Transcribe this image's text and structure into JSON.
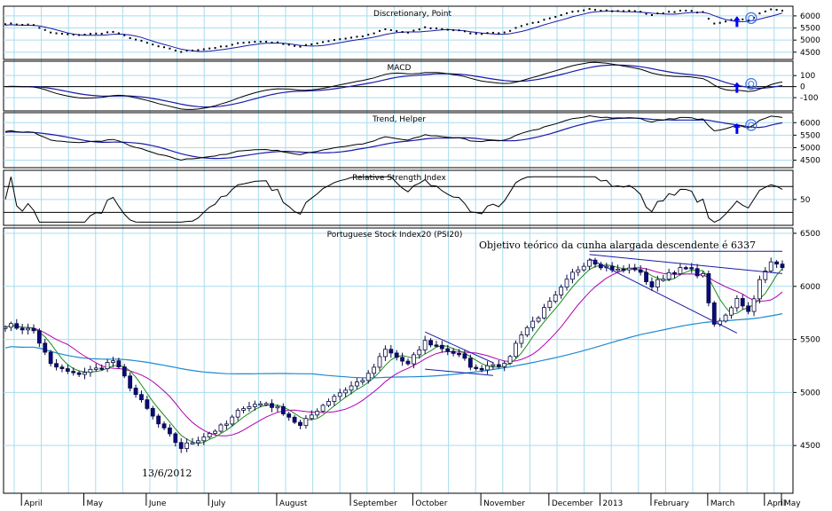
{
  "chart_data": [
    {
      "type": "line",
      "title": "Discretionary, Point",
      "yticks": [
        6000,
        5500,
        5000,
        4500
      ],
      "ylim": [
        4200,
        6400
      ],
      "colors": {
        "main": "#000000",
        "overlay": "#1a1aa8",
        "signal": "#0000ff"
      }
    },
    {
      "type": "line",
      "title": "MACD",
      "yticks": [
        100,
        0,
        -100
      ],
      "ylim": [
        -220,
        230
      ],
      "zero_line": 0,
      "colors": {
        "macd": "#000000",
        "signal": "#1a1aa8"
      }
    },
    {
      "type": "line",
      "title": "Trend, Helper",
      "yticks": [
        6000,
        5500,
        5000,
        4500
      ],
      "ylim": [
        4200,
        6400
      ],
      "colors": {
        "main": "#000000",
        "overlay": "#1a1aa8"
      }
    },
    {
      "type": "line",
      "title": "Relative Strength Index",
      "yticks": [
        50
      ],
      "ylim": [
        10,
        95
      ],
      "levels": [
        70,
        30
      ],
      "colors": {
        "rsi": "#000000"
      }
    },
    {
      "type": "candlestick",
      "title": "Portuguese Stock Index20 (PSI20)",
      "yticks": [
        6500,
        6000,
        5500,
        5000,
        4500
      ],
      "ylim": [
        4050,
        6550
      ],
      "x_labels": [
        "April",
        "May",
        "June",
        "July",
        "August",
        "September",
        "October",
        "November",
        "December",
        "2013",
        "February",
        "March",
        "April",
        "May"
      ],
      "colors": {
        "up": "#ffffff",
        "down": "#0a0a80",
        "ma20": "#1c8a1c",
        "ma50": "#b000b0",
        "ma200": "#1f8ad0",
        "wedge": "#1a1aa8"
      },
      "annotations": {
        "objective": "Objetivo teórico da cunha alargada descendente é 6337",
        "low_date": "13/6/2012"
      },
      "anchors": [
        {
          "t": 0,
          "v": 5640
        },
        {
          "t": 5,
          "v": 5580
        },
        {
          "t": 8,
          "v": 5260
        },
        {
          "t": 12,
          "v": 5170
        },
        {
          "t": 16,
          "v": 5220
        },
        {
          "t": 19,
          "v": 5300
        },
        {
          "t": 23,
          "v": 4980
        },
        {
          "t": 27,
          "v": 4700
        },
        {
          "t": 31,
          "v": 4480
        },
        {
          "t": 35,
          "v": 4590
        },
        {
          "t": 39,
          "v": 4700
        },
        {
          "t": 42,
          "v": 4870
        },
        {
          "t": 46,
          "v": 4900
        },
        {
          "t": 49,
          "v": 4820
        },
        {
          "t": 52,
          "v": 4680
        },
        {
          "t": 55,
          "v": 4840
        },
        {
          "t": 58,
          "v": 4970
        },
        {
          "t": 61,
          "v": 5060
        },
        {
          "t": 64,
          "v": 5160
        },
        {
          "t": 67,
          "v": 5400
        },
        {
          "t": 69,
          "v": 5330
        },
        {
          "t": 71,
          "v": 5260
        },
        {
          "t": 74,
          "v": 5480
        },
        {
          "t": 77,
          "v": 5420
        },
        {
          "t": 80,
          "v": 5350
        },
        {
          "t": 83,
          "v": 5210
        },
        {
          "t": 86,
          "v": 5280
        },
        {
          "t": 88,
          "v": 5250
        },
        {
          "t": 91,
          "v": 5560
        },
        {
          "t": 94,
          "v": 5720
        },
        {
          "t": 97,
          "v": 5900
        },
        {
          "t": 100,
          "v": 6120
        },
        {
          "t": 103,
          "v": 6260
        },
        {
          "t": 105,
          "v": 6200
        },
        {
          "t": 108,
          "v": 6150
        },
        {
          "t": 111,
          "v": 6170
        },
        {
          "t": 114,
          "v": 6000
        },
        {
          "t": 117,
          "v": 6130
        },
        {
          "t": 120,
          "v": 6170
        },
        {
          "t": 123,
          "v": 6100
        },
        {
          "t": 125,
          "v": 5620
        },
        {
          "t": 127,
          "v": 5720
        },
        {
          "t": 129,
          "v": 5900
        },
        {
          "t": 131,
          "v": 5760
        },
        {
          "t": 133,
          "v": 6050
        },
        {
          "t": 135,
          "v": 6220
        },
        {
          "t": 137,
          "v": 6200
        }
      ]
    }
  ]
}
